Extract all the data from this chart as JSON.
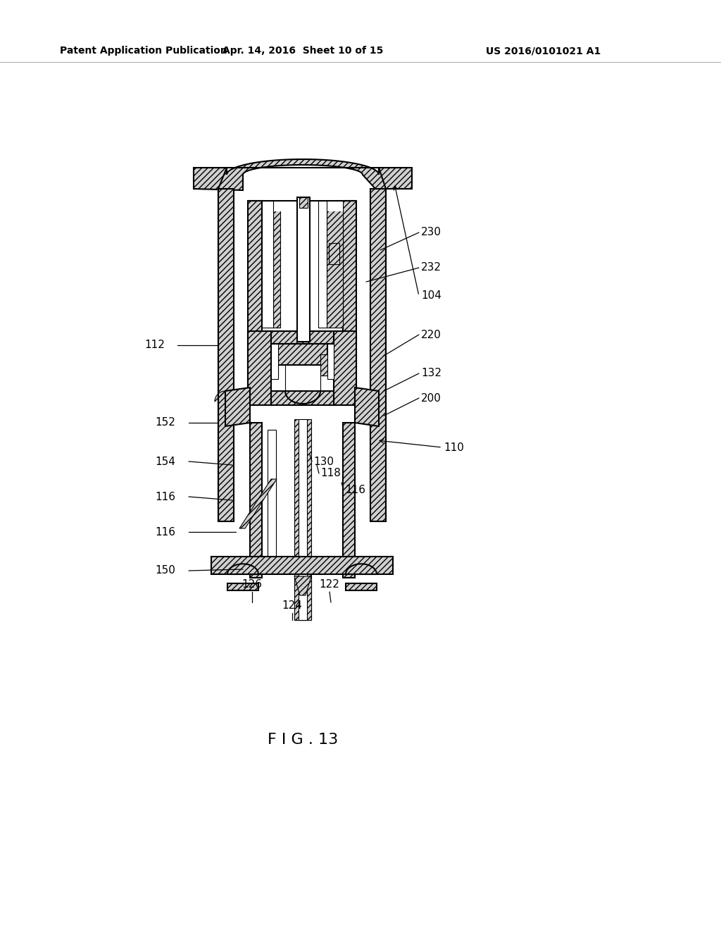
{
  "background_color": "#ffffff",
  "header_left": "Patent Application Publication",
  "header_center": "Apr. 14, 2016  Sheet 10 of 15",
  "header_right": "US 2016/0101021 A1",
  "figure_label": "F I G . 13",
  "line_color": "#000000",
  "text_color": "#000000",
  "hatch_color": "#444444",
  "lw_main": 1.5,
  "lw_thin": 0.8,
  "fs_label": 11,
  "fs_header": 10,
  "fs_fig": 16
}
